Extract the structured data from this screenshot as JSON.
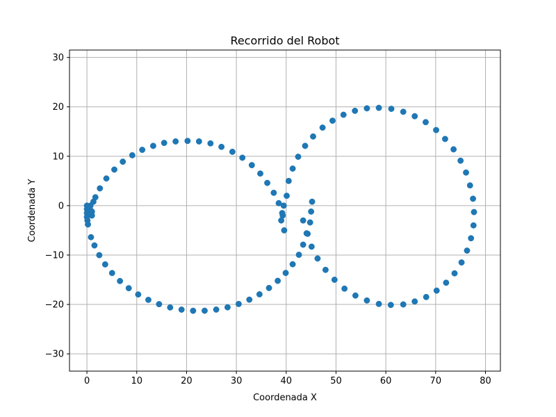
{
  "chart_data": {
    "type": "scatter",
    "title": "Recorrido del Robot",
    "xlabel": "Coordenada X",
    "ylabel": "Coordenada Y",
    "xlim": [
      -3.5,
      83
    ],
    "ylim": [
      -33.5,
      31.5
    ],
    "xticks": [
      0,
      10,
      20,
      30,
      40,
      50,
      60,
      70,
      80
    ],
    "yticks": [
      -30,
      -20,
      -10,
      0,
      10,
      20,
      30
    ],
    "xtick_labels": [
      "0",
      "10",
      "20",
      "30",
      "40",
      "50",
      "60",
      "70",
      "80"
    ],
    "ytick_labels": [
      "−30",
      "−20",
      "−10",
      "0",
      "10",
      "20",
      "30"
    ],
    "grid": true,
    "legend": "none",
    "marker_color": "#1f77b4",
    "series": [
      {
        "points": [
          [
            0.0,
            0.0
          ],
          [
            0.0,
            -0.7
          ],
          [
            0.0,
            -1.5
          ],
          [
            0.0,
            -2.3
          ],
          [
            0.1,
            -3.0
          ],
          [
            0.2,
            -3.8
          ],
          [
            0.7,
            0.0
          ],
          [
            0.8,
            -1.0
          ],
          [
            1.0,
            -2.0
          ],
          [
            1.0,
            -1.2
          ],
          [
            1.3,
            0.8
          ],
          [
            1.7,
            1.7
          ],
          [
            0.81,
            -6.39
          ],
          [
            1.51,
            -8.05
          ],
          [
            2.48,
            -10.02
          ],
          [
            3.66,
            -11.89
          ],
          [
            5.05,
            -13.64
          ],
          [
            6.63,
            -15.26
          ],
          [
            8.39,
            -16.71
          ],
          [
            10.29,
            -17.98
          ],
          [
            12.33,
            -19.07
          ],
          [
            14.48,
            -19.94
          ],
          [
            16.7,
            -20.61
          ],
          [
            18.99,
            -21.05
          ],
          [
            21.31,
            -21.28
          ],
          [
            23.63,
            -21.27
          ],
          [
            25.95,
            -21.04
          ],
          [
            28.23,
            -20.58
          ],
          [
            30.46,
            -19.91
          ],
          [
            32.6,
            -19.03
          ],
          [
            34.64,
            -17.95
          ],
          [
            36.55,
            -16.67
          ],
          [
            38.3,
            -15.22
          ],
          [
            39.9,
            -13.62
          ],
          [
            41.3,
            -11.86
          ],
          [
            42.55,
            -9.95
          ],
          [
            43.4,
            -7.9
          ],
          [
            44.3,
            -5.7
          ],
          [
            44.8,
            -3.4
          ],
          [
            45.0,
            -1.2
          ],
          [
            45.2,
            0.8
          ],
          [
            39.6,
            -5.0
          ],
          [
            39.5,
            0.0
          ],
          [
            40.1,
            2.0
          ],
          [
            39.3,
            -2.0
          ],
          [
            39.0,
            -3.0
          ],
          [
            2.6,
            3.5
          ],
          [
            3.9,
            5.5
          ],
          [
            5.5,
            7.3
          ],
          [
            7.2,
            8.9
          ],
          [
            9.1,
            10.2
          ],
          [
            11.1,
            11.3
          ],
          [
            13.3,
            12.1
          ],
          [
            15.5,
            12.7
          ],
          [
            17.8,
            13.0
          ],
          [
            20.2,
            13.1
          ],
          [
            22.5,
            13.0
          ],
          [
            24.8,
            12.6
          ],
          [
            27.0,
            11.9
          ],
          [
            29.2,
            10.9
          ],
          [
            31.2,
            9.7
          ],
          [
            33.1,
            8.2
          ],
          [
            34.8,
            6.5
          ],
          [
            36.2,
            4.6
          ],
          [
            37.5,
            2.6
          ],
          [
            38.5,
            0.5
          ],
          [
            39.2,
            -1.5
          ],
          [
            40.5,
            5.0
          ],
          [
            41.3,
            7.5
          ],
          [
            42.4,
            9.9
          ],
          [
            43.8,
            12.1
          ],
          [
            45.4,
            14.0
          ],
          [
            47.3,
            15.8
          ],
          [
            49.3,
            17.2
          ],
          [
            51.5,
            18.4
          ],
          [
            53.8,
            19.2
          ],
          [
            56.2,
            19.7
          ],
          [
            58.6,
            19.8
          ],
          [
            61.1,
            19.6
          ],
          [
            63.5,
            19.0
          ],
          [
            65.8,
            18.1
          ],
          [
            68.0,
            16.9
          ],
          [
            70.1,
            15.3
          ],
          [
            71.9,
            13.5
          ],
          [
            73.6,
            11.4
          ],
          [
            75.0,
            9.1
          ],
          [
            76.1,
            6.7
          ],
          [
            76.9,
            4.1
          ],
          [
            77.5,
            1.4
          ],
          [
            77.7,
            -1.3
          ],
          [
            77.6,
            -4.0
          ],
          [
            77.1,
            -6.6
          ],
          [
            76.3,
            -9.1
          ],
          [
            75.2,
            -11.5
          ],
          [
            73.8,
            -13.7
          ],
          [
            72.1,
            -15.6
          ],
          [
            70.2,
            -17.2
          ],
          [
            68.1,
            -18.5
          ],
          [
            65.8,
            -19.4
          ],
          [
            63.5,
            -20.0
          ],
          [
            61.0,
            -20.1
          ],
          [
            58.6,
            -19.9
          ],
          [
            56.2,
            -19.2
          ],
          [
            53.9,
            -18.2
          ],
          [
            51.7,
            -16.8
          ],
          [
            49.7,
            -15.0
          ],
          [
            47.9,
            -13.0
          ],
          [
            46.3,
            -10.7
          ],
          [
            45.1,
            -8.3
          ],
          [
            44.1,
            -5.6
          ],
          [
            43.4,
            -3.0
          ]
        ]
      }
    ]
  }
}
